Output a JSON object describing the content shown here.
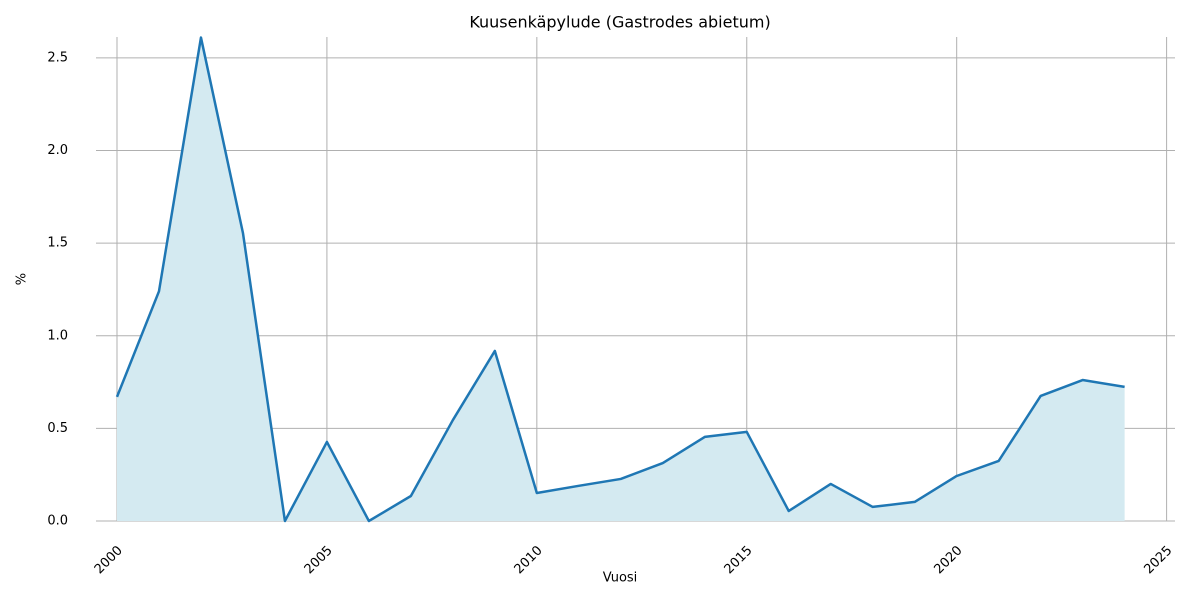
{
  "chart_data": {
    "type": "area",
    "title": "Kuusenkäpylude (Gastrodes abietum)",
    "x_label": "Vuosi",
    "y_label": "%",
    "x": [
      2000,
      2001,
      2002,
      2003,
      2004,
      2005,
      2006,
      2007,
      2008,
      2009,
      2010,
      2011,
      2012,
      2013,
      2014,
      2015,
      2016,
      2017,
      2018,
      2019,
      2020,
      2021,
      2022,
      2023,
      2024
    ],
    "series": [
      {
        "color": "#1f77b4",
        "fill_color": "#d4eaf1",
        "values": [
          0.67,
          1.24,
          2.61,
          1.555,
          0.0,
          0.427,
          0.0,
          0.135,
          0.545,
          0.918,
          0.151,
          0.19,
          0.227,
          0.313,
          0.454,
          0.481,
          0.054,
          0.2,
          0.076,
          0.103,
          0.243,
          0.324,
          0.675,
          0.761,
          0.724
        ]
      }
    ],
    "xlim": [
      1999.5,
      2025.2
    ],
    "ylim": [
      0,
      2.613
    ],
    "xticks": [
      2000,
      2005,
      2010,
      2015,
      2020,
      2025
    ],
    "yticks": [
      {
        "value": 0,
        "label": "0.0"
      },
      {
        "value": 0.5,
        "label": "0.5"
      },
      {
        "value": 1,
        "label": "1.0"
      },
      {
        "value": 1.5,
        "label": "1.5"
      },
      {
        "value": 2,
        "label": "2.0"
      },
      {
        "value": 2.5,
        "label": "2.5"
      }
    ],
    "grid": true
  }
}
